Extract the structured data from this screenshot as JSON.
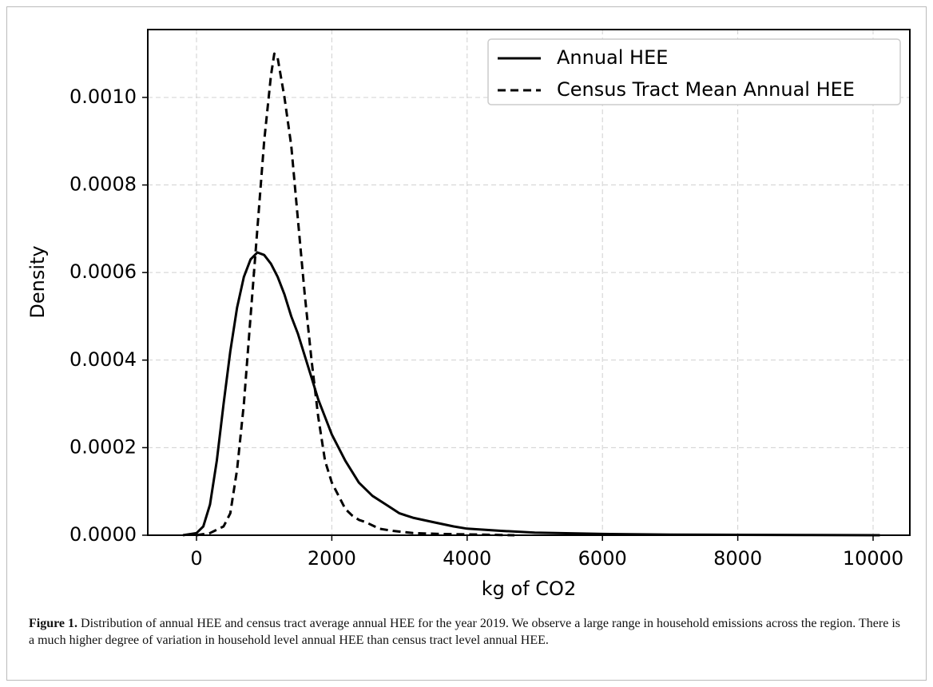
{
  "chart_data": {
    "type": "line",
    "xlabel": "kg of CO2",
    "ylabel": "Density",
    "xlim": [
      -720,
      10543
    ],
    "ylim": [
      0,
      0.001155
    ],
    "xticks": [
      0,
      2000,
      4000,
      6000,
      8000,
      10000
    ],
    "yticks": [
      {
        "value": 0,
        "label": "0.0000"
      },
      {
        "value": 0.0002,
        "label": "0.0002"
      },
      {
        "value": 0.0004,
        "label": "0.0004"
      },
      {
        "value": 0.0006,
        "label": "0.0006"
      },
      {
        "value": 0.0008,
        "label": "0.0008"
      },
      {
        "value": 0.001,
        "label": "0.0010"
      }
    ],
    "grid": true,
    "legend": "upper right",
    "series": [
      {
        "name": "Annual HEE",
        "color": "#000000",
        "linestyle": "solid",
        "x": [
          -200,
          0,
          100,
          200,
          300,
          400,
          500,
          600,
          700,
          800,
          900,
          1000,
          1100,
          1200,
          1300,
          1400,
          1500,
          1600,
          1700,
          1800,
          1900,
          2000,
          2200,
          2400,
          2600,
          2800,
          3000,
          3200,
          3500,
          3800,
          4000,
          4500,
          5000,
          6000,
          7000,
          8000,
          9000,
          10100
        ],
        "values": [
          0,
          5e-06,
          2e-05,
          7e-05,
          0.00017,
          0.0003,
          0.00042,
          0.00052,
          0.00059,
          0.00063,
          0.000646,
          0.00064,
          0.00062,
          0.00059,
          0.00055,
          0.0005,
          0.00046,
          0.00041,
          0.00036,
          0.00031,
          0.00027,
          0.00023,
          0.00017,
          0.00012,
          9e-05,
          7e-05,
          5e-05,
          4e-05,
          3e-05,
          2e-05,
          1.5e-05,
          1e-05,
          6e-06,
          3e-06,
          1.5e-06,
          1e-06,
          5e-07,
          0
        ]
      },
      {
        "name": "Census Tract Mean Annual HEE",
        "color": "#000000",
        "linestyle": "dashed",
        "x": [
          0,
          200,
          400,
          500,
          600,
          700,
          800,
          900,
          1000,
          1100,
          1150,
          1200,
          1300,
          1400,
          1500,
          1600,
          1700,
          1800,
          1900,
          2000,
          2100,
          2200,
          2300,
          2400,
          2500,
          2700,
          2900,
          3200,
          3600,
          4000,
          4500,
          4700
        ],
        "values": [
          0,
          5e-06,
          2e-05,
          5e-05,
          0.00015,
          0.0003,
          0.0005,
          0.0007,
          0.0009,
          0.00105,
          0.0011,
          0.00109,
          0.001,
          0.00089,
          0.00072,
          0.00055,
          0.0004,
          0.00027,
          0.00017,
          0.00012,
          9e-05,
          6e-05,
          4.5e-05,
          3.5e-05,
          3e-05,
          1.5e-05,
          1e-05,
          5e-06,
          3e-06,
          2e-06,
          5e-07,
          0
        ]
      }
    ]
  },
  "caption": {
    "label": "Figure 1.",
    "text": "Distribution of annual HEE and census tract average annual HEE for the year 2019. We observe a large range in household emissions across the region. There is a much higher degree of variation in household level annual HEE than census tract level annual HEE."
  }
}
